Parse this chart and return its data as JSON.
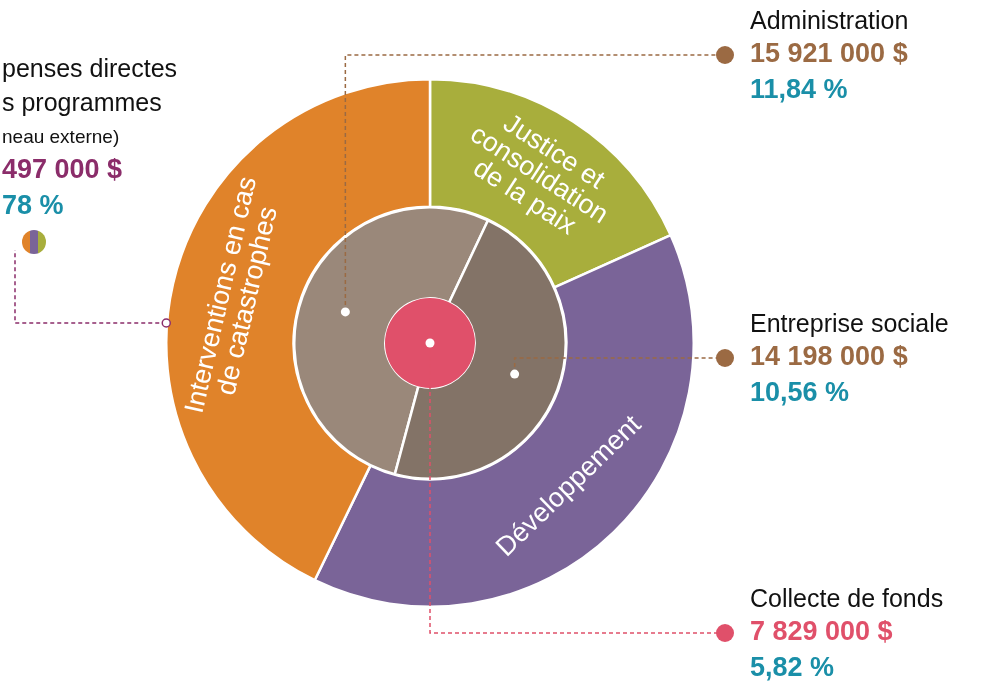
{
  "chart_data": [
    {
      "type": "donut",
      "categories": [
        "Justice et\nconsolidation\nde la paix",
        "Développement",
        "Interventions en cas\nde catastrophes"
      ],
      "values": [
        18.3,
        38.9,
        42.8
      ],
      "colors": [
        "#a8ae3c",
        "#7a6498",
        "#e0832a"
      ],
      "annotations": [
        "penses directes\ns programmes",
        "neau externe)",
        "497 000 $\n78 %"
      ]
    },
    {
      "type": "donut",
      "categories": [
        "Administration",
        "Entreprise sociale"
      ],
      "values": [
        15921000,
        14198000
      ],
      "colors": [
        "#9a887a",
        "#837367"
      ],
      "value_labels": [
        "15 921 000 $\n11,84 %",
        "14 198 000 $\n10,56 %"
      ]
    },
    {
      "type": "pie",
      "categories": [
        "Collecte de fonds"
      ],
      "values": [
        7829000
      ],
      "colors": [
        "#e0506a"
      ],
      "value_labels": [
        "7 829 000 $\n5,82 %"
      ]
    }
  ]
}
